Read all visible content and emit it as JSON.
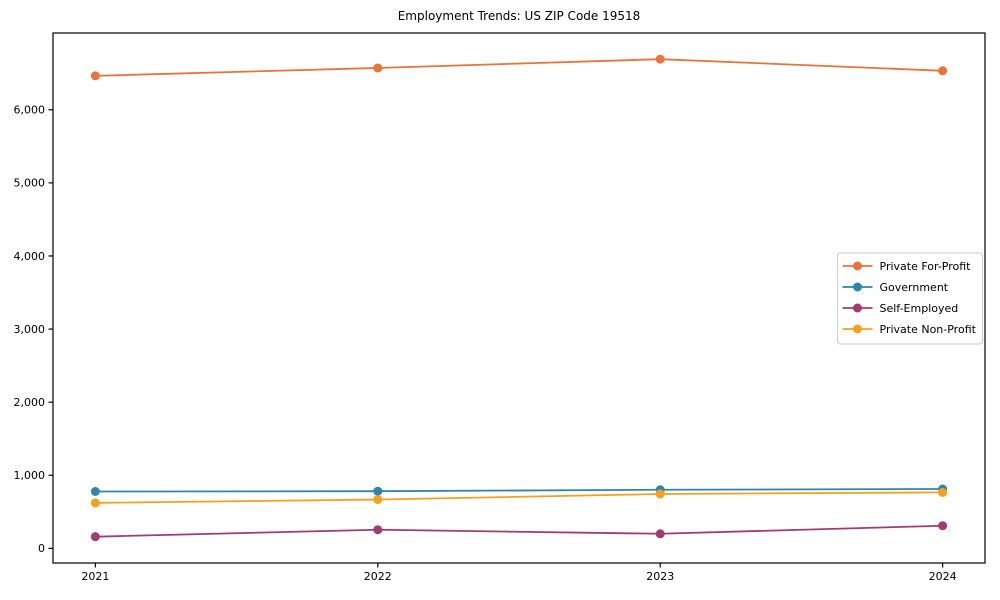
{
  "chart_data": {
    "type": "line",
    "title": "Employment Trends: US ZIP Code 19518",
    "x": [
      2021,
      2022,
      2023,
      2024
    ],
    "x_tick_labels": [
      "2021",
      "2022",
      "2023",
      "2024"
    ],
    "series": [
      {
        "name": "Private For-Profit",
        "color": "#e8743c",
        "values": [
          6464,
          6572,
          6692,
          6533
        ]
      },
      {
        "name": "Government",
        "color": "#2e86ab",
        "values": [
          778,
          782,
          802,
          812
        ]
      },
      {
        "name": "Self-Employed",
        "color": "#a23b72",
        "values": [
          160,
          255,
          200,
          310
        ]
      },
      {
        "name": "Private Non-Profit",
        "color": "#f5a01e",
        "values": [
          622,
          668,
          744,
          766
        ]
      }
    ],
    "yticks": [
      0,
      1000,
      2000,
      3000,
      4000,
      5000,
      6000
    ],
    "ytick_labels": [
      "0",
      "1,000",
      "2,000",
      "3,000",
      "4,000",
      "5,000",
      "6,000"
    ],
    "xlim": [
      2020.85,
      2024.15
    ],
    "ylim": [
      -200,
      7050
    ],
    "xlabel": "",
    "ylabel": "",
    "grid": false,
    "legend_position": "center-right",
    "axis_color": "#000000",
    "legend_border_color": "#cccccc",
    "legend_background": "#ffffff"
  }
}
